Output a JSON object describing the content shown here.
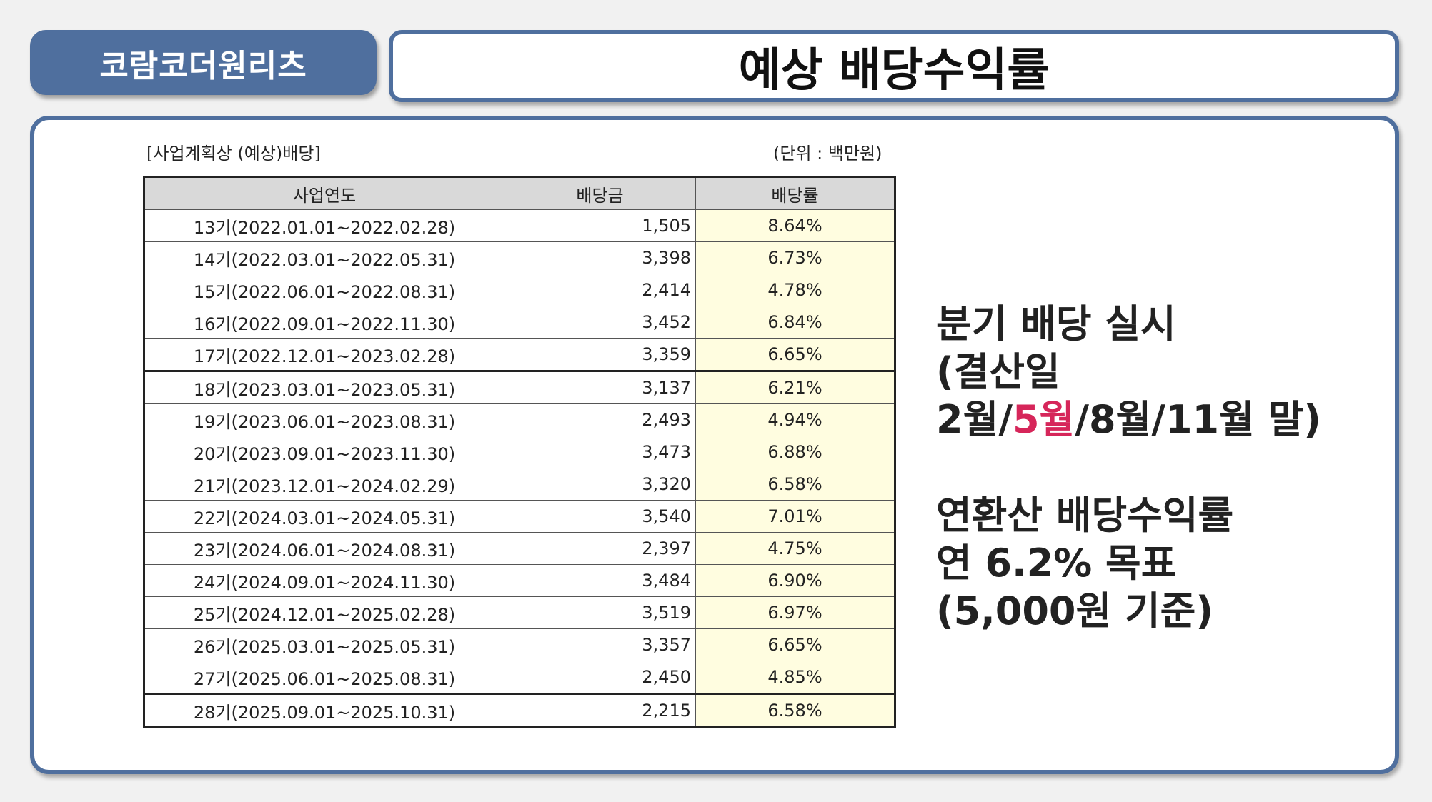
{
  "header": {
    "tag_label": "코람코더원리츠",
    "title": "예상 배당수익률"
  },
  "table": {
    "caption": "[사업계획상 (예상)배당]",
    "unit": "(단위 : 백만원)",
    "columns": [
      "사업연도",
      "배당금",
      "배당률"
    ],
    "rows": [
      {
        "period": "13기(2022.01.01~2022.02.28)",
        "amount": "1,505",
        "rate": "8.64%"
      },
      {
        "period": "14기(2022.03.01~2022.05.31)",
        "amount": "3,398",
        "rate": "6.73%"
      },
      {
        "period": "15기(2022.06.01~2022.08.31)",
        "amount": "2,414",
        "rate": "4.78%"
      },
      {
        "period": "16기(2022.09.01~2022.11.30)",
        "amount": "3,452",
        "rate": "6.84%"
      },
      {
        "period": "17기(2022.12.01~2023.02.28)",
        "amount": "3,359",
        "rate": "6.65%"
      },
      {
        "period": "18기(2023.03.01~2023.05.31)",
        "amount": "3,137",
        "rate": "6.21%"
      },
      {
        "period": "19기(2023.06.01~2023.08.31)",
        "amount": "2,493",
        "rate": "4.94%"
      },
      {
        "period": "20기(2023.09.01~2023.11.30)",
        "amount": "3,473",
        "rate": "6.88%"
      },
      {
        "period": "21기(2023.12.01~2024.02.29)",
        "amount": "3,320",
        "rate": "6.58%"
      },
      {
        "period": "22기(2024.03.01~2024.05.31)",
        "amount": "3,540",
        "rate": "7.01%"
      },
      {
        "period": "23기(2024.06.01~2024.08.31)",
        "amount": "2,397",
        "rate": "4.75%"
      },
      {
        "period": "24기(2024.09.01~2024.11.30)",
        "amount": "3,484",
        "rate": "6.90%"
      },
      {
        "period": "25기(2024.12.01~2025.02.28)",
        "amount": "3,519",
        "rate": "6.97%"
      },
      {
        "period": "26기(2025.03.01~2025.05.31)",
        "amount": "3,357",
        "rate": "6.65%"
      },
      {
        "period": "27기(2025.06.01~2025.08.31)",
        "amount": "2,450",
        "rate": "4.85%"
      },
      {
        "period": "28기(2025.09.01~2025.10.31)",
        "amount": "2,215",
        "rate": "6.58%"
      }
    ]
  },
  "side": {
    "line1": "분기 배당 실시",
    "line2": "(결산일",
    "line3_a": "2월/",
    "line3_hl": "5월",
    "line3_b": "/8월/11월 말)",
    "line4": "연환산 배당수익률",
    "line5": "연 6.2% 목표",
    "line6": "(5,000원 기준)",
    "highlight_color": "#d6265a"
  }
}
